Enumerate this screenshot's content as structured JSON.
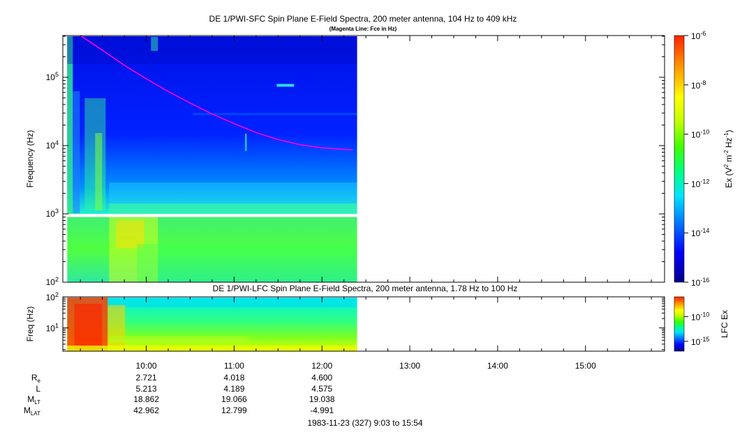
{
  "chart_data": [
    {
      "type": "heatmap",
      "title": "DE 1/PWI-SFC  Spin Plane E-Field Spectra, 200 meter antenna, 104 Hz to 409 kHz",
      "subtitle": "(Magenta Line: Fce in Hz)",
      "ylabel": "Frequency (Hz)",
      "yscale": "log",
      "ylim": [
        100,
        409000
      ],
      "y_ticks": [
        {
          "value": 100,
          "base": "10",
          "exp": "2"
        },
        {
          "value": 1000,
          "base": "10",
          "exp": "3"
        },
        {
          "value": 10000,
          "base": "10",
          "exp": "4"
        },
        {
          "value": 100000,
          "base": "10",
          "exp": "5"
        }
      ],
      "x_range_hours": [
        9.05,
        15.9
      ],
      "data_coverage_hours": [
        9.1,
        12.4
      ],
      "colorbar": {
        "label_parts": {
          "a": "Ex (V",
          "b": "2",
          "c": " m",
          "d": "-2",
          "e": " Hz",
          "f": "-1",
          "g": ")"
        },
        "scale": "log",
        "range": [
          1e-16,
          1e-06
        ],
        "ticks": [
          {
            "base": "10",
            "exp": "-6"
          },
          {
            "base": "10",
            "exp": "-8"
          },
          {
            "base": "10",
            "exp": "-10"
          },
          {
            "base": "10",
            "exp": "-12"
          },
          {
            "base": "10",
            "exp": "-14"
          },
          {
            "base": "10",
            "exp": "-16"
          }
        ],
        "colors": [
          "#00008b",
          "#0000ff",
          "#0080ff",
          "#00e5ff",
          "#00ff80",
          "#40ff00",
          "#c0ff00",
          "#ffff00",
          "#ff9900",
          "#ff2200"
        ]
      },
      "overlay_line": {
        "color": "#ff00ff",
        "x_hours": [
          9.25,
          9.5,
          9.75,
          10.0,
          10.25,
          10.5,
          10.75,
          11.0,
          11.25,
          11.5,
          11.75,
          12.0,
          12.25,
          12.35
        ],
        "y_hz": [
          450000,
          250000,
          150000,
          95000,
          62000,
          42000,
          29000,
          21000,
          15500,
          12300,
          10300,
          9300,
          8800,
          8700
        ]
      },
      "gap_hz": [
        900,
        1000
      ]
    },
    {
      "type": "heatmap",
      "title": "DE 1/PWI-LFC  Spin Plane E-Field Spectra, 200 meter antenna, 1.78 Hz to 100 Hz",
      "ylabel": "Freq (Hz)",
      "yscale": "log",
      "ylim": [
        1.78,
        100
      ],
      "y_ticks": [
        {
          "value": 10,
          "base": "10",
          "exp": "1"
        },
        {
          "value": 100,
          "base": "10",
          "exp": "2"
        }
      ],
      "colorbar": {
        "label": "LFC Ex",
        "ticks": [
          {
            "base": "10",
            "exp": "-10"
          },
          {
            "base": "10",
            "exp": "-15"
          }
        ]
      }
    }
  ],
  "time_axis": {
    "ticks": [
      "10:00",
      "11:00",
      "12:00",
      "13:00",
      "14:00",
      "15:00"
    ],
    "tick_hours": [
      10,
      11,
      12,
      13,
      14,
      15
    ]
  },
  "ephemeris": {
    "rows": [
      {
        "label": "R",
        "sub": "e",
        "values": [
          "2.721",
          "4.018",
          "4.600"
        ]
      },
      {
        "label": "L",
        "sub": "",
        "values": [
          "5.213",
          "4.189",
          "4.575"
        ]
      },
      {
        "label": "M",
        "sub": "LT",
        "values": [
          "18.862",
          "19.066",
          "19.038"
        ]
      },
      {
        "label": "M",
        "sub": "LAT",
        "values": [
          "42.962",
          "12.799",
          "-4.991"
        ]
      }
    ]
  },
  "footer": "1983-11-23 (327) 9:03 to 15:54"
}
